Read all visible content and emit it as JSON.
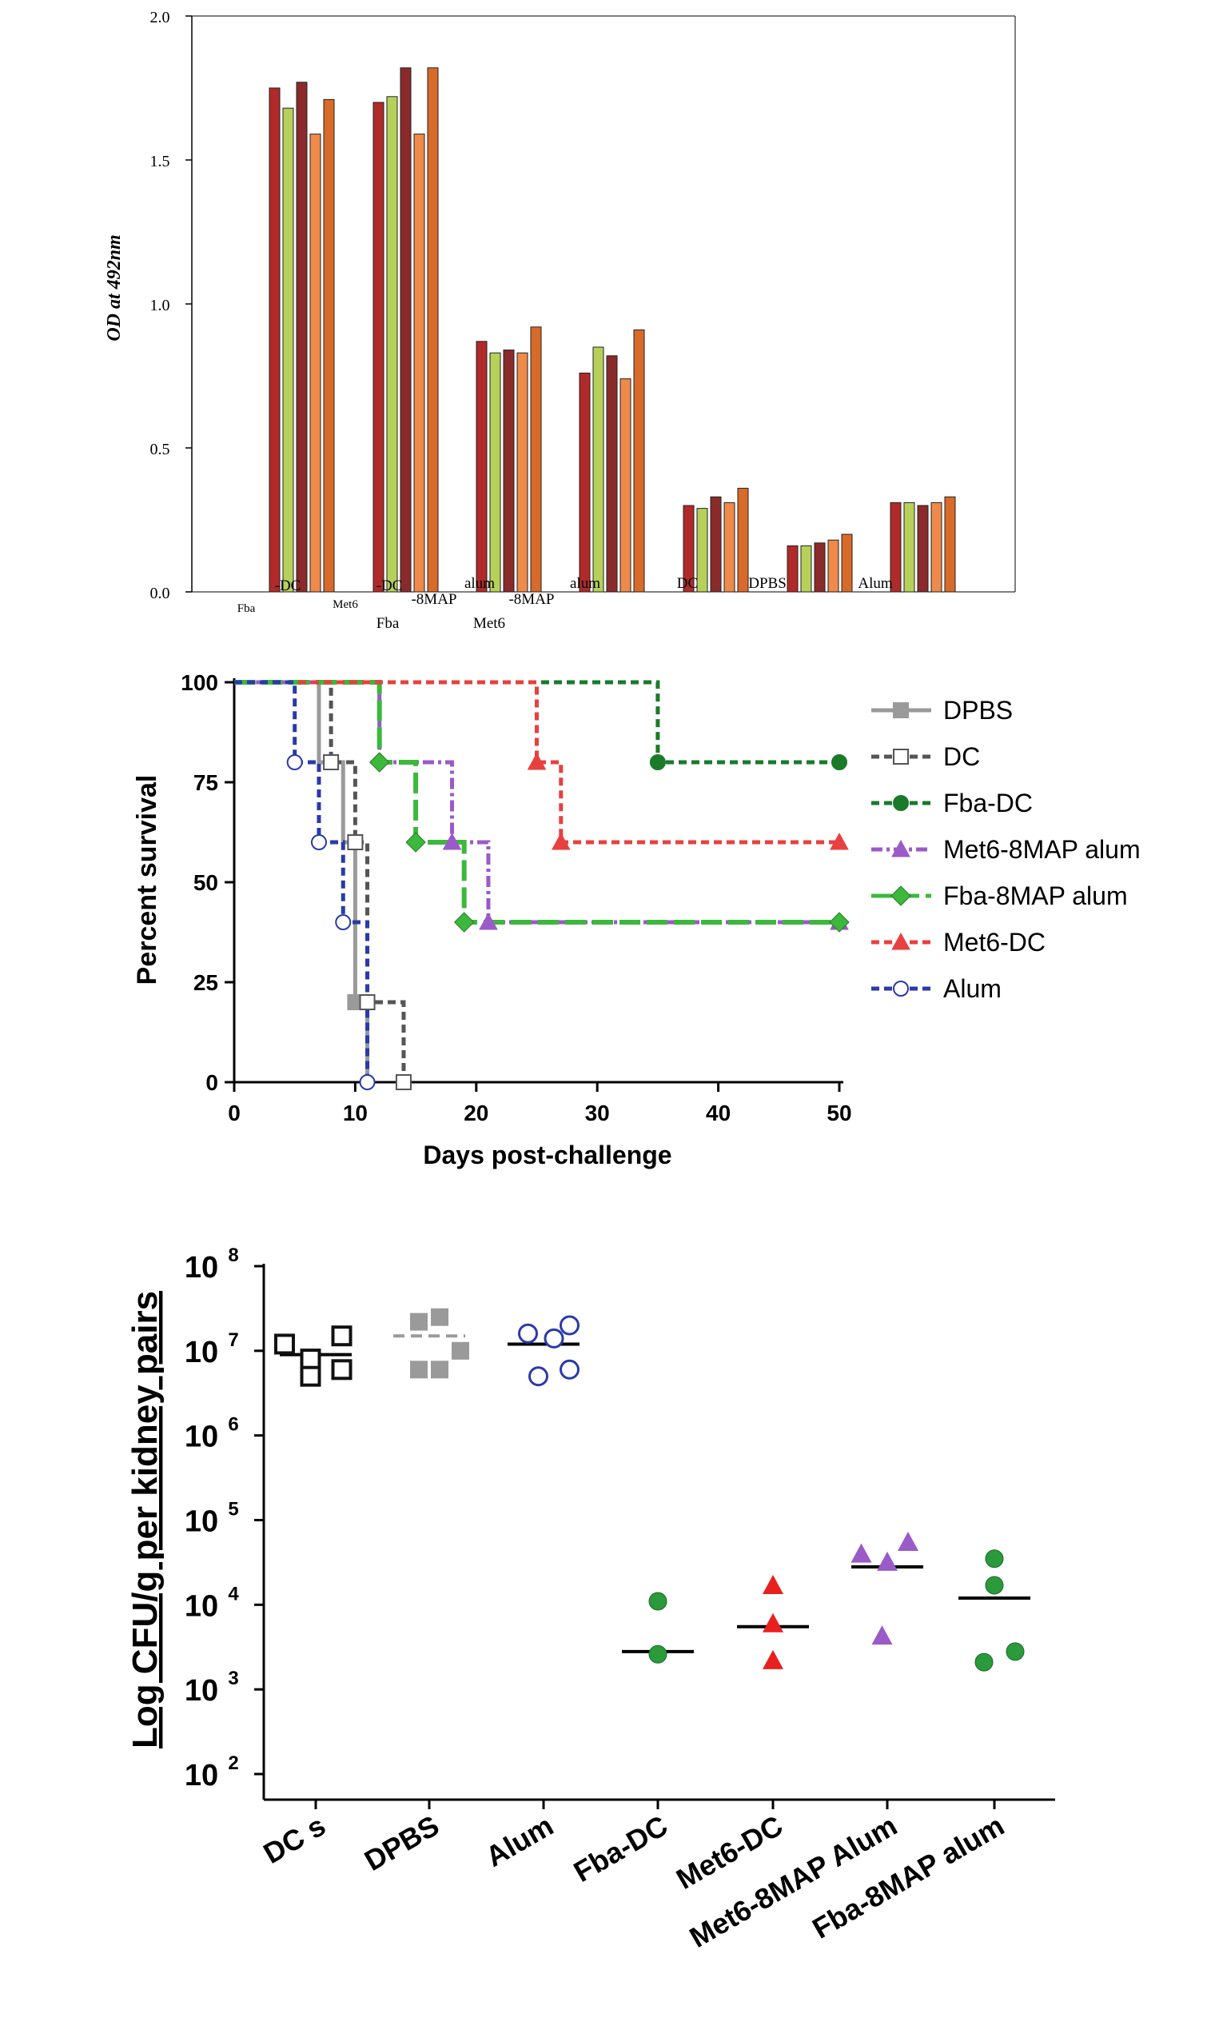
{
  "chart_data": [
    {
      "type": "bar",
      "ylabel": "OD at  492nm",
      "ylim": [
        0,
        2.0
      ],
      "yticks": [
        "0.0",
        "0.5",
        "1.0",
        "1.5",
        "2.0"
      ],
      "groups": [
        {
          "name": "Fba-DC",
          "values": [
            1.75,
            1.68,
            1.77,
            1.59,
            1.71
          ]
        },
        {
          "name": "Met6-DC",
          "values": [
            1.7,
            1.72,
            1.82,
            1.59,
            1.82
          ]
        },
        {
          "name": "Fba-8MAP alum",
          "values": [
            0.87,
            0.83,
            0.84,
            0.83,
            0.92
          ]
        },
        {
          "name": "Met6-8MAP alum",
          "values": [
            0.76,
            0.85,
            0.82,
            0.74,
            0.91
          ]
        },
        {
          "name": "DC",
          "values": [
            0.3,
            0.29,
            0.33,
            0.31,
            0.36
          ]
        },
        {
          "name": "DPBS",
          "values": [
            0.16,
            0.16,
            0.17,
            0.18,
            0.2
          ]
        },
        {
          "name": "Alum",
          "values": [
            0.31,
            0.31,
            0.3,
            0.31,
            0.33
          ]
        }
      ],
      "bar_colors": [
        "#b02a2a",
        "#b7d05a",
        "#8a2a2a",
        "#ee8a4a",
        "#d86a2a"
      ],
      "category_labels": [
        {
          "line1": "Fba",
          "line2": "-DC"
        },
        {
          "line1": "Met6",
          "line2": "-DC"
        },
        {
          "line1": "-8MAP",
          "line2": "Fba"
        },
        {
          "line1": "alum",
          "line2": ""
        },
        {
          "line1": "-8MAP",
          "line2": "Met6"
        },
        {
          "line1": "alum",
          "line2": ""
        },
        {
          "line1": "DC",
          "line2": ""
        },
        {
          "line1": "DPBS",
          "line2": ""
        },
        {
          "line1": "Alum",
          "line2": ""
        }
      ]
    },
    {
      "type": "line",
      "xlabel": "Days post-challenge",
      "ylabel": "Percent survival",
      "xlim": [
        0,
        50
      ],
      "ylim": [
        0,
        100
      ],
      "xticks": [
        "0",
        "10",
        "20",
        "30",
        "40",
        "50"
      ],
      "yticks": [
        "0",
        "25",
        "50",
        "75",
        "100"
      ],
      "series": [
        {
          "name": "DPBS",
          "color": "#9a9a9a",
          "style": "solid",
          "marker": "square-filled",
          "steps": [
            [
              0,
              100
            ],
            [
              7,
              100
            ],
            [
              7,
              80
            ],
            [
              9,
              80
            ],
            [
              9,
              60
            ],
            [
              10,
              60
            ],
            [
              10,
              20
            ],
            [
              11,
              20
            ],
            [
              11,
              0
            ]
          ],
          "markers": [
            [
              10,
              20
            ]
          ]
        },
        {
          "name": "DC",
          "color": "#555555",
          "style": "dashed",
          "marker": "square-open",
          "steps": [
            [
              0,
              100
            ],
            [
              8,
              100
            ],
            [
              8,
              80
            ],
            [
              10,
              80
            ],
            [
              10,
              60
            ],
            [
              11,
              60
            ],
            [
              11,
              20
            ],
            [
              14,
              20
            ],
            [
              14,
              0
            ]
          ],
          "markers": [
            [
              8,
              80
            ],
            [
              10,
              60
            ],
            [
              11,
              20
            ],
            [
              14,
              0
            ]
          ]
        },
        {
          "name": "Fba-DC",
          "color": "#1a7a2a",
          "style": "dashed",
          "marker": "circle-filled",
          "steps": [
            [
              0,
              100
            ],
            [
              35,
              100
            ],
            [
              35,
              80
            ],
            [
              50,
              80
            ]
          ],
          "markers": [
            [
              35,
              80
            ],
            [
              50,
              80
            ]
          ]
        },
        {
          "name": "Met6-8MAP alum",
          "color": "#9a5ac8",
          "style": "dashdot",
          "marker": "triangle-filled",
          "steps": [
            [
              0,
              100
            ],
            [
              12,
              100
            ],
            [
              12,
              80
            ],
            [
              18,
              80
            ],
            [
              18,
              60
            ],
            [
              21,
              60
            ],
            [
              21,
              40
            ],
            [
              50,
              40
            ]
          ],
          "markers": [
            [
              18,
              60
            ],
            [
              21,
              40
            ],
            [
              50,
              40
            ]
          ]
        },
        {
          "name": "Fba-8MAP alum",
          "color": "#3cb83c",
          "style": "longdash",
          "marker": "diamond-filled",
          "steps": [
            [
              0,
              100
            ],
            [
              12,
              100
            ],
            [
              12,
              80
            ],
            [
              15,
              80
            ],
            [
              15,
              60
            ],
            [
              19,
              60
            ],
            [
              19,
              40
            ],
            [
              50,
              40
            ]
          ],
          "markers": [
            [
              12,
              80
            ],
            [
              15,
              60
            ],
            [
              19,
              40
            ],
            [
              50,
              40
            ]
          ]
        },
        {
          "name": "Met6-DC",
          "color": "#e84040",
          "style": "dashed",
          "marker": "triangle-filled",
          "steps": [
            [
              0,
              100
            ],
            [
              25,
              100
            ],
            [
              25,
              80
            ],
            [
              27,
              80
            ],
            [
              27,
              60
            ],
            [
              50,
              60
            ]
          ],
          "markers": [
            [
              25,
              80
            ],
            [
              27,
              60
            ],
            [
              50,
              60
            ]
          ]
        },
        {
          "name": "Alum",
          "color": "#2a3aaa",
          "style": "dashed",
          "marker": "circle-open",
          "steps": [
            [
              0,
              100
            ],
            [
              5,
              100
            ],
            [
              5,
              80
            ],
            [
              7,
              80
            ],
            [
              7,
              60
            ],
            [
              9,
              60
            ],
            [
              9,
              40
            ],
            [
              11,
              40
            ],
            [
              11,
              0
            ]
          ],
          "markers": [
            [
              5,
              80
            ],
            [
              7,
              60
            ],
            [
              9,
              40
            ],
            [
              11,
              0
            ]
          ]
        }
      ]
    },
    {
      "type": "scatter",
      "ylabel": "Log CFU/g per kidney pairs",
      "ylim": [
        100,
        100000000
      ],
      "yscale": "log",
      "yticks": [
        {
          "base": "10",
          "exp": "2"
        },
        {
          "base": "10",
          "exp": "3"
        },
        {
          "base": "10",
          "exp": "4"
        },
        {
          "base": "10",
          "exp": "5"
        },
        {
          "base": "10",
          "exp": "6"
        },
        {
          "base": "10",
          "exp": "7"
        },
        {
          "base": "10",
          "exp": "8"
        }
      ],
      "categories": [
        "DC s",
        "DPBS",
        "Alum",
        "Fba-DC",
        "Met6-DC",
        "Met6-8MAP Alum",
        "Fba-8MAP alum"
      ],
      "groups": [
        {
          "name": "DC s",
          "marker": "square-open",
          "color": "#111111",
          "median": 9000000,
          "points": [
            [
              -0.3,
              12000000
            ],
            [
              -0.05,
              8000000
            ],
            [
              0.25,
              15000000
            ],
            [
              -0.05,
              5000000
            ],
            [
              0.25,
              6000000
            ]
          ]
        },
        {
          "name": "DPBS",
          "marker": "square-filled",
          "color": "#9a9a9a",
          "median": 15000000,
          "median_dashed": true,
          "points": [
            [
              -0.1,
              22000000
            ],
            [
              0.1,
              25000000
            ],
            [
              -0.1,
              6000000
            ],
            [
              0.3,
              10000000
            ],
            [
              0.1,
              6000000
            ]
          ]
        },
        {
          "name": "Alum",
          "marker": "circle-open",
          "color": "#2a3aaa",
          "median": 12000000,
          "points": [
            [
              -0.15,
              16000000
            ],
            [
              0.25,
              20000000
            ],
            [
              0.1,
              14000000
            ],
            [
              -0.05,
              5000000
            ],
            [
              0.25,
              6000000
            ]
          ]
        },
        {
          "name": "Fba-DC",
          "marker": "circle-filled",
          "color": "#2a9a3a",
          "median": 2800,
          "points": [
            [
              0,
              11000
            ],
            [
              0,
              2600
            ]
          ]
        },
        {
          "name": "Met6-DC",
          "marker": "triangle-filled",
          "color": "#e82020",
          "median": 5500,
          "points": [
            [
              0,
              17000
            ],
            [
              0,
              6000
            ],
            [
              0,
              2200
            ]
          ]
        },
        {
          "name": "Met6-8MAP Alum",
          "marker": "triangle-filled",
          "color": "#9a5ac8",
          "median": 28000,
          "points": [
            [
              -0.25,
              40000
            ],
            [
              0,
              32000
            ],
            [
              0.2,
              55000
            ],
            [
              -0.05,
              4300
            ]
          ]
        },
        {
          "name": "Fba-8MAP alum",
          "marker": "circle-filled",
          "color": "#2a9a3a",
          "median": 12000,
          "points": [
            [
              0,
              35000
            ],
            [
              0,
              17000
            ],
            [
              -0.1,
              2100
            ],
            [
              0.2,
              2800
            ]
          ]
        }
      ]
    }
  ]
}
